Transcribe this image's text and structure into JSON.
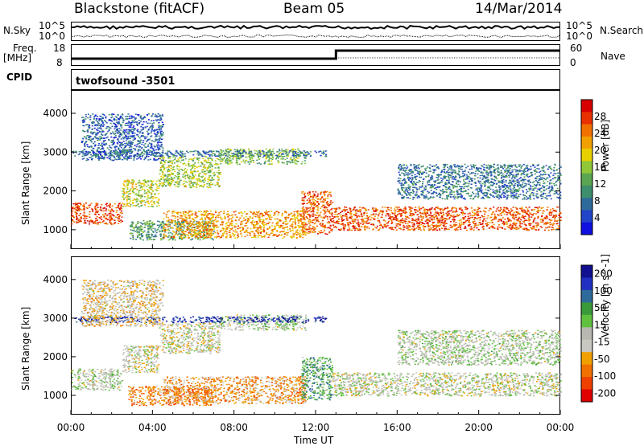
{
  "header": {
    "station": "Blackstone (fitACF)",
    "beam": "Beam 05",
    "date": "14/Mar/2014"
  },
  "side_labels": {
    "nsky": "N.Sky",
    "nsearch": "N.Search",
    "freq": "Freq.",
    "freq_unit": "[MHz]",
    "nave": "Nave",
    "cpid": "CPID",
    "cpid_value": "twofsound  -3501"
  },
  "mini_axes": {
    "left_noise_top": "10^5",
    "left_noise_bottom": "10^0",
    "right_noise_top": "10^5",
    "right_noise_bottom": "10^0",
    "freq_top": "18",
    "freq_bottom": "8",
    "nave_top": "60",
    "nave_bottom": "0"
  },
  "colors": {
    "power_scale": [
      "#1010e0",
      "#2244c8",
      "#2f6b9a",
      "#3e8f6e",
      "#5aa550",
      "#90c838",
      "#e8d000",
      "#f0a000",
      "#f07000",
      "#e83000",
      "#d80000"
    ],
    "velocity_scale": [
      "#e00000",
      "#f04000",
      "#f07000",
      "#f0a000",
      "#c8c8c0",
      "#b8b8b0",
      "#60c040",
      "#3a9a3a",
      "#2f6b9a",
      "#2030c0",
      "#101090"
    ],
    "frame": "#000000"
  },
  "chart_data": [
    {
      "type": "heatmap",
      "name": "power",
      "ylabel": "Slant Range [km]",
      "yticks": [
        1000,
        2000,
        3000,
        4000
      ],
      "ylim": [
        500,
        4600
      ],
      "xlim": [
        0,
        24
      ],
      "colorbar_label": "Power [dB]",
      "colorbar_ticks": [
        "4",
        "8",
        "12",
        "16",
        "20",
        "24",
        "28"
      ],
      "colorbar_range": [
        0,
        32
      ],
      "bands": [
        {
          "x": [
            0.0,
            2.5
          ],
          "y": [
            1150,
            1700
          ],
          "level": 0.85
        },
        {
          "x": [
            2.5,
            4.3
          ],
          "y": [
            1600,
            2300
          ],
          "level": 0.55
        },
        {
          "x": [
            4.3,
            7.3
          ],
          "y": [
            2100,
            2900
          ],
          "level": 0.5
        },
        {
          "x": [
            7.3,
            11.5
          ],
          "y": [
            2700,
            3100
          ],
          "level": 0.45
        },
        {
          "x": [
            2.8,
            7.0
          ],
          "y": [
            750,
            1250
          ],
          "level": 0.35
        },
        {
          "x": [
            4.5,
            11.5
          ],
          "y": [
            800,
            1500
          ],
          "level": 0.7
        },
        {
          "x": [
            11.3,
            12.8
          ],
          "y": [
            900,
            2000
          ],
          "level": 0.8
        },
        {
          "x": [
            12.8,
            24.0
          ],
          "y": [
            1000,
            1600
          ],
          "level": 0.82
        },
        {
          "x": [
            0.0,
            12.5
          ],
          "y": [
            2900,
            3050
          ],
          "level": 0.25
        },
        {
          "x": [
            0.5,
            4.5
          ],
          "y": [
            2800,
            4000
          ],
          "level": 0.2
        },
        {
          "x": [
            16.0,
            24.0
          ],
          "y": [
            1800,
            2700
          ],
          "level": 0.25
        }
      ]
    },
    {
      "type": "heatmap",
      "name": "velocity",
      "xlabel": "Time UT",
      "xticks": [
        "00:00",
        "04:00",
        "08:00",
        "12:00",
        "16:00",
        "20:00",
        "00:00"
      ],
      "ylabel": "Slant Range [km]",
      "yticks": [
        1000,
        2000,
        3000,
        4000
      ],
      "ylim": [
        500,
        4600
      ],
      "xlim": [
        0,
        24
      ],
      "colorbar_label": "Velocity [m s^-1]",
      "colorbar_ticks": [
        "200",
        "100",
        "50",
        "15",
        "-15",
        "-50",
        "-100",
        "-200"
      ],
      "bands": [
        {
          "x": [
            0.0,
            2.5
          ],
          "y": [
            1150,
            1700
          ],
          "level": 0.5
        },
        {
          "x": [
            2.5,
            4.3
          ],
          "y": [
            1600,
            2300
          ],
          "level": 0.45
        },
        {
          "x": [
            4.3,
            7.3
          ],
          "y": [
            2100,
            2900
          ],
          "level": 0.45
        },
        {
          "x": [
            7.3,
            11.5
          ],
          "y": [
            2700,
            3100
          ],
          "level": 0.5
        },
        {
          "x": [
            2.8,
            7.0
          ],
          "y": [
            750,
            1250
          ],
          "level": 0.25
        },
        {
          "x": [
            4.5,
            11.5
          ],
          "y": [
            800,
            1500
          ],
          "level": 0.3
        },
        {
          "x": [
            11.3,
            12.8
          ],
          "y": [
            900,
            2000
          ],
          "level": 0.65
        },
        {
          "x": [
            12.8,
            24.0
          ],
          "y": [
            1000,
            1600
          ],
          "level": 0.47
        },
        {
          "x": [
            0.0,
            12.5
          ],
          "y": [
            2900,
            3050
          ],
          "level": 0.9
        },
        {
          "x": [
            0.5,
            4.5
          ],
          "y": [
            2800,
            4000
          ],
          "level": 0.4
        },
        {
          "x": [
            16.0,
            24.0
          ],
          "y": [
            1800,
            2700
          ],
          "level": 0.5
        }
      ]
    }
  ]
}
